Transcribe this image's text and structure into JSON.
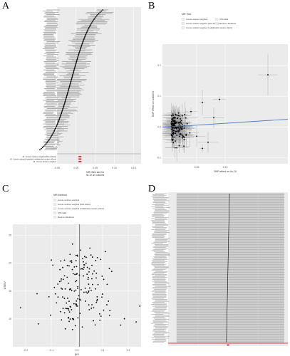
{
  "panels": {
    "a": {
      "letter": "A"
    },
    "b": {
      "letter": "B"
    },
    "c": {
      "letter": "C"
    },
    "d": {
      "letter": "D"
    }
  },
  "colors": {
    "panel_bg": "#ebebeb",
    "grid": "#ffffff",
    "point": "#000000",
    "errorbar": "#9a9a9a",
    "summary": "#e8343f",
    "blue_line": "#4a80c4",
    "funnel_line": "#4a80c4"
  },
  "chart_data": [
    {
      "id": "A",
      "type": "forest",
      "n_snps": 120,
      "sorted": true,
      "estimate_range": [
        -0.05,
        0.17
      ],
      "xtick_labels": [
        "-0.05",
        "0.00",
        "0.05",
        "0.10",
        "0.15"
      ],
      "xlabel": [
        "MR effect size for",
        "Ilu-10 on outcome"
      ],
      "summary_labels": [
        "All - Inverse variance weighted (fixed effects)",
        "All - Inverse variance weighted (multiplicative random effects)",
        "All - Inverse variance weighted"
      ],
      "summary_estimates": [
        0.01,
        0.01,
        0.01
      ]
    },
    {
      "id": "B",
      "type": "scatter",
      "xlabel": "SNP effect on ilu-10",
      "ylabel": "SNP effect on outcome",
      "xlim": [
        -0.01,
        0.21
      ],
      "ylim": [
        -0.12,
        0.27
      ],
      "xtick_labels": [
        "0.05",
        "0.10"
      ],
      "ytick_labels": [
        "-0.1",
        "0.0",
        "0.1",
        "0.2"
      ],
      "legend_title": "MR Test",
      "legend_entries": [
        "Inverse variance weighted",
        "Inverse variance weighted (fixed effects)",
        "Inverse variance weighted (multiplicative random effects)",
        "IVW radial",
        "Maximum likelihood"
      ],
      "outlier_points": [
        {
          "x": 0.175,
          "y": 0.17
        },
        {
          "x": 0.09,
          "y": 0.09
        },
        {
          "x": 0.06,
          "y": 0.08
        },
        {
          "x": 0.07,
          "y": -0.05
        },
        {
          "x": 0.06,
          "y": -0.07
        },
        {
          "x": 0.05,
          "y": -0.03
        },
        {
          "x": 0.08,
          "y": 0.03
        },
        {
          "x": 0.04,
          "y": 0.05
        }
      ],
      "regression_slope": 0.12,
      "regression_intercept": 0.0
    },
    {
      "id": "C",
      "type": "scatter",
      "xlabel": "βIV",
      "ylabel": "1/SEIV",
      "xlim": [
        -0.25,
        0.25
      ],
      "ylim": [
        5,
        27
      ],
      "xtick_labels": [
        "-0.2",
        "-0.1",
        "0.0",
        "0.1",
        "0.2"
      ],
      "ytick_labels": [
        "10",
        "15",
        "20",
        "25"
      ],
      "legend_title": "MR Method",
      "legend_entries": [
        "Inverse variance weighted",
        "Inverse variance weighted (fixed effects)",
        "Inverse variance weighted (multiplicative random effects)",
        "IVW radial",
        "Maximum likelihood"
      ],
      "vertical_line_x": 0.01
    },
    {
      "id": "D",
      "type": "forest",
      "n_snps": 150,
      "sorted": true,
      "estimate_range": [
        -0.05,
        0.05
      ],
      "summary_estimate": 0.0
    }
  ]
}
